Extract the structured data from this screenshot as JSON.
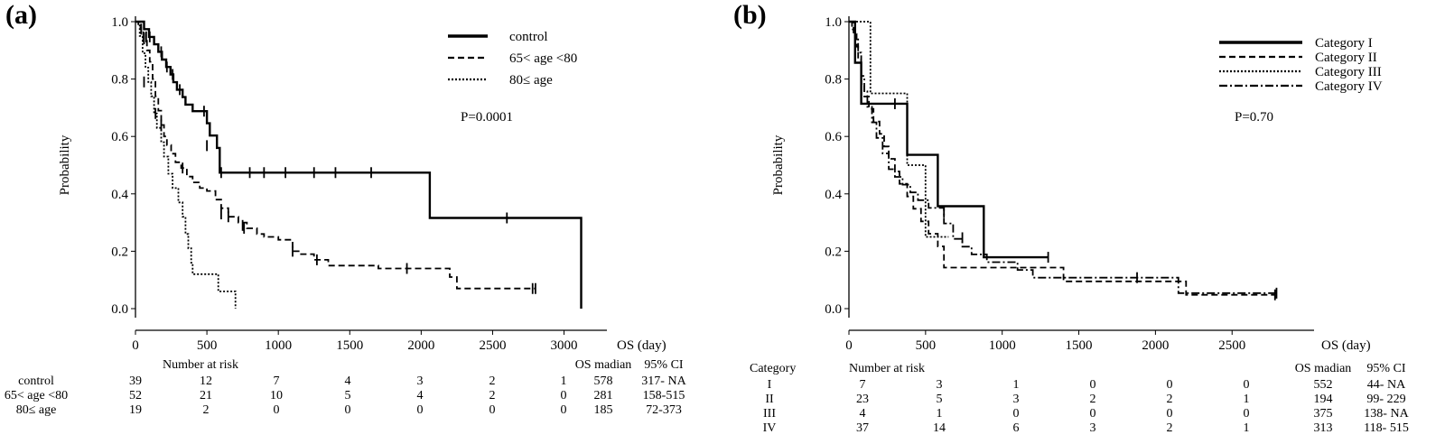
{
  "chart_data": [
    {
      "type": "line",
      "panel_label": "(a)",
      "xlabel": "OS (day)",
      "ylabel": "Probability",
      "xlim": [
        0,
        3300
      ],
      "ylim": [
        0,
        1.0
      ],
      "x_ticks": [
        "0",
        "500",
        "1000",
        "1500",
        "2000",
        "2500",
        "3000"
      ],
      "y_ticks": [
        "0.0",
        "0.2",
        "0.4",
        "0.6",
        "0.8",
        "1.0"
      ],
      "legend_position": "top-right",
      "pvalue": "P=0.0001",
      "series": [
        {
          "name": "control",
          "style": "solid",
          "points": [
            [
              0,
              1.0
            ],
            [
              60,
              0.974
            ],
            [
              95,
              0.947
            ],
            [
              130,
              0.921
            ],
            [
              160,
              0.895
            ],
            [
              185,
              0.868
            ],
            [
              215,
              0.842
            ],
            [
              245,
              0.816
            ],
            [
              265,
              0.789
            ],
            [
              290,
              0.763
            ],
            [
              330,
              0.737
            ],
            [
              350,
              0.711
            ],
            [
              400,
              0.688
            ],
            [
              470,
              0.688
            ],
            [
              500,
              0.646
            ],
            [
              520,
              0.603
            ],
            [
              570,
              0.56
            ],
            [
              590,
              0.474
            ],
            [
              2060,
              0.474
            ],
            [
              2060,
              0.316
            ],
            [
              3120,
              0.316
            ],
            [
              3120,
              0.0
            ]
          ],
          "censors": [
            [
              40,
              0.974
            ],
            [
              55,
              0.947
            ],
            [
              75,
              0.947
            ],
            [
              100,
              0.947
            ],
            [
              180,
              0.895
            ],
            [
              220,
              0.842
            ],
            [
              260,
              0.816
            ],
            [
              310,
              0.763
            ],
            [
              480,
              0.688
            ],
            [
              500,
              0.568
            ],
            [
              600,
              0.474
            ],
            [
              800,
              0.474
            ],
            [
              900,
              0.474
            ],
            [
              1050,
              0.474
            ],
            [
              1250,
              0.474
            ],
            [
              1400,
              0.474
            ],
            [
              1650,
              0.474
            ],
            [
              2600,
              0.316
            ]
          ]
        },
        {
          "name": "65< age <80",
          "style": "dashed",
          "points": [
            [
              0,
              1.0
            ],
            [
              20,
              0.98
            ],
            [
              40,
              0.96
            ],
            [
              60,
              0.94
            ],
            [
              80,
              0.9
            ],
            [
              100,
              0.86
            ],
            [
              120,
              0.8
            ],
            [
              140,
              0.74
            ],
            [
              160,
              0.69
            ],
            [
              180,
              0.64
            ],
            [
              200,
              0.6
            ],
            [
              220,
              0.57
            ],
            [
              250,
              0.54
            ],
            [
              280,
              0.51
            ],
            [
              320,
              0.49
            ],
            [
              360,
              0.46
            ],
            [
              400,
              0.44
            ],
            [
              450,
              0.42
            ],
            [
              500,
              0.41
            ],
            [
              560,
              0.38
            ],
            [
              600,
              0.35
            ],
            [
              650,
              0.32
            ],
            [
              720,
              0.3
            ],
            [
              780,
              0.28
            ],
            [
              850,
              0.26
            ],
            [
              900,
              0.25
            ],
            [
              1000,
              0.24
            ],
            [
              1100,
              0.2
            ],
            [
              1150,
              0.19
            ],
            [
              1250,
              0.17
            ],
            [
              1350,
              0.15
            ],
            [
              1600,
              0.15
            ],
            [
              1700,
              0.14
            ],
            [
              2150,
              0.14
            ],
            [
              2200,
              0.11
            ],
            [
              2250,
              0.07
            ],
            [
              2800,
              0.07
            ]
          ],
          "censors": [
            [
              60,
              0.94
            ],
            [
              180,
              0.64
            ],
            [
              330,
              0.49
            ],
            [
              600,
              0.33
            ],
            [
              650,
              0.32
            ],
            [
              750,
              0.29
            ],
            [
              760,
              0.28
            ],
            [
              1100,
              0.2
            ],
            [
              1270,
              0.17
            ],
            [
              1900,
              0.14
            ],
            [
              2780,
              0.07
            ],
            [
              2800,
              0.07
            ]
          ]
        },
        {
          "name": "80≤ age",
          "style": "dotted",
          "points": [
            [
              0,
              1.0
            ],
            [
              30,
              0.95
            ],
            [
              50,
              0.89
            ],
            [
              70,
              0.84
            ],
            [
              90,
              0.79
            ],
            [
              110,
              0.74
            ],
            [
              130,
              0.68
            ],
            [
              150,
              0.63
            ],
            [
              180,
              0.58
            ],
            [
              200,
              0.53
            ],
            [
              230,
              0.47
            ],
            [
              260,
              0.42
            ],
            [
              300,
              0.37
            ],
            [
              330,
              0.32
            ],
            [
              350,
              0.26
            ],
            [
              370,
              0.21
            ],
            [
              390,
              0.16
            ],
            [
              400,
              0.12
            ],
            [
              580,
              0.12
            ],
            [
              580,
              0.06
            ],
            [
              700,
              0.06
            ],
            [
              700,
              0.0
            ]
          ],
          "censors": [
            [
              60,
              0.79
            ],
            [
              140,
              0.68
            ]
          ]
        }
      ],
      "risk_table": {
        "header": "Number at risk",
        "median_header": "OS madian",
        "ci_header": "95% CI",
        "rows": [
          {
            "label": "control",
            "counts": [
              "39",
              "12",
              "7",
              "4",
              "3",
              "2",
              "1"
            ],
            "median": "578",
            "ci": "317- NA"
          },
          {
            "label": "65< age <80",
            "counts": [
              "52",
              "21",
              "10",
              "5",
              "4",
              "2",
              "0"
            ],
            "median": "281",
            "ci": "158-515"
          },
          {
            "label": "80≤ age",
            "counts": [
              "19",
              "2",
              "0",
              "0",
              "0",
              "0",
              "0"
            ],
            "median": "185",
            "ci": "72-373"
          }
        ]
      }
    },
    {
      "type": "line",
      "panel_label": "(b)",
      "xlabel": "OS (day)",
      "ylabel": "Probability",
      "xlim": [
        0,
        3300
      ],
      "ylim": [
        0,
        1.0
      ],
      "x_ticks": [
        "0",
        "500",
        "1000",
        "1500",
        "2000",
        "2500"
      ],
      "y_ticks": [
        "0.0",
        "0.2",
        "0.4",
        "0.6",
        "0.8",
        "1.0"
      ],
      "legend_position": "top-right",
      "pvalue": "P=0.70",
      "series": [
        {
          "name": "Category I",
          "style": "solid",
          "points": [
            [
              0,
              1.0
            ],
            [
              40,
              0.857
            ],
            [
              80,
              0.714
            ],
            [
              380,
              0.714
            ],
            [
              380,
              0.536
            ],
            [
              580,
              0.536
            ],
            [
              580,
              0.357
            ],
            [
              880,
              0.357
            ],
            [
              880,
              0.179
            ],
            [
              1300,
              0.179
            ]
          ],
          "censors": [
            [
              300,
              0.714
            ],
            [
              1300,
              0.179
            ]
          ]
        },
        {
          "name": "Category II",
          "style": "dashed",
          "points": [
            [
              0,
              1.0
            ],
            [
              30,
              0.957
            ],
            [
              50,
              0.913
            ],
            [
              60,
              0.87
            ],
            [
              80,
              0.783
            ],
            [
              100,
              0.739
            ],
            [
              130,
              0.696
            ],
            [
              160,
              0.652
            ],
            [
              200,
              0.609
            ],
            [
              230,
              0.565
            ],
            [
              260,
              0.522
            ],
            [
              300,
              0.478
            ],
            [
              330,
              0.435
            ],
            [
              380,
              0.391
            ],
            [
              420,
              0.348
            ],
            [
              470,
              0.304
            ],
            [
              520,
              0.261
            ],
            [
              580,
              0.217
            ],
            [
              620,
              0.143
            ],
            [
              1300,
              0.143
            ],
            [
              1400,
              0.095
            ],
            [
              2150,
              0.095
            ],
            [
              2200,
              0.048
            ],
            [
              2780,
              0.048
            ]
          ],
          "censors": [
            [
              2780,
              0.048
            ]
          ]
        },
        {
          "name": "Category III",
          "style": "dotted",
          "points": [
            [
              0,
              1.0
            ],
            [
              140,
              1.0
            ],
            [
              140,
              0.75
            ],
            [
              380,
              0.75
            ],
            [
              380,
              0.5
            ],
            [
              500,
              0.5
            ],
            [
              500,
              0.25
            ],
            [
              650,
              0.25
            ],
            [
              650,
              0.25
            ]
          ],
          "censors": []
        },
        {
          "name": "Category IV",
          "style": "dashdot",
          "points": [
            [
              0,
              1.0
            ],
            [
              20,
              0.973
            ],
            [
              40,
              0.946
            ],
            [
              60,
              0.892
            ],
            [
              80,
              0.811
            ],
            [
              100,
              0.757
            ],
            [
              120,
              0.703
            ],
            [
              150,
              0.649
            ],
            [
              180,
              0.595
            ],
            [
              220,
              0.541
            ],
            [
              260,
              0.486
            ],
            [
              300,
              0.459
            ],
            [
              350,
              0.432
            ],
            [
              400,
              0.405
            ],
            [
              450,
              0.378
            ],
            [
              520,
              0.351
            ],
            [
              620,
              0.297
            ],
            [
              680,
              0.243
            ],
            [
              740,
              0.216
            ],
            [
              800,
              0.189
            ],
            [
              900,
              0.162
            ],
            [
              1100,
              0.135
            ],
            [
              1200,
              0.108
            ],
            [
              1400,
              0.108
            ],
            [
              2150,
              0.108
            ],
            [
              2150,
              0.054
            ],
            [
              2800,
              0.054
            ]
          ],
          "censors": [
            [
              80,
              0.811
            ],
            [
              620,
              0.335
            ],
            [
              740,
              0.247
            ],
            [
              1880,
              0.108
            ],
            [
              2790,
              0.054
            ]
          ]
        }
      ],
      "risk_table": {
        "row_title": "Category",
        "header": "Number at risk",
        "median_header": "OS madian",
        "ci_header": "95% CI",
        "rows": [
          {
            "label": "I",
            "counts": [
              "7",
              "3",
              "1",
              "0",
              "0",
              "0"
            ],
            "median": "552",
            "ci": "44- NA"
          },
          {
            "label": "II",
            "counts": [
              "23",
              "5",
              "3",
              "2",
              "2",
              "1"
            ],
            "median": "194",
            "ci": "99- 229"
          },
          {
            "label": "III",
            "counts": [
              "4",
              "1",
              "0",
              "0",
              "0",
              "0"
            ],
            "median": "375",
            "ci": "138- NA"
          },
          {
            "label": "IV",
            "counts": [
              "37",
              "14",
              "6",
              "3",
              "2",
              "1"
            ],
            "median": "313",
            "ci": "118- 515"
          }
        ]
      }
    }
  ]
}
